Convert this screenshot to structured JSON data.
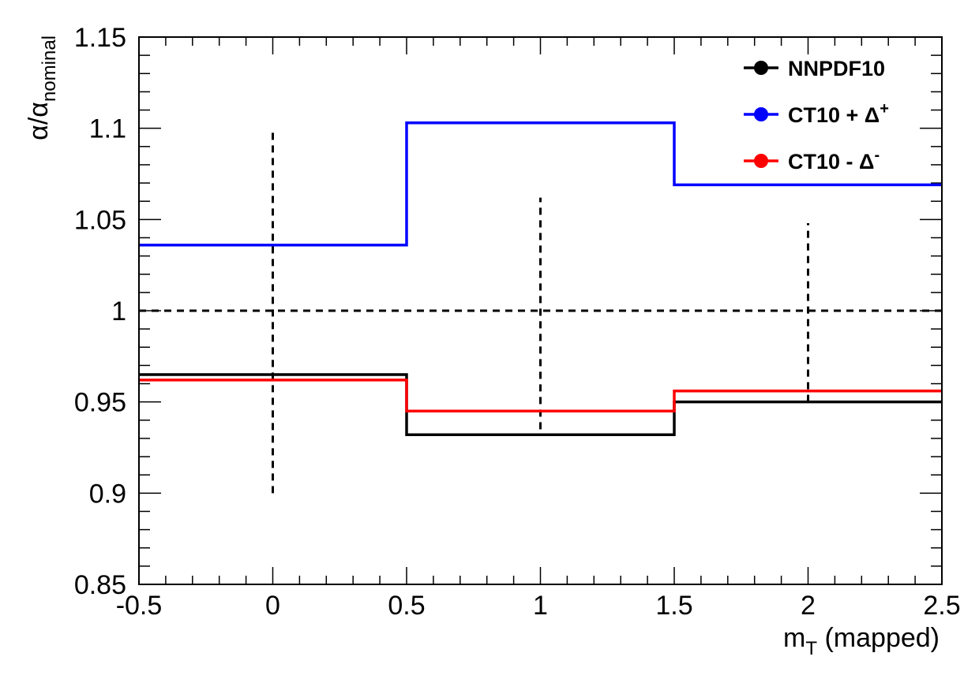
{
  "chart_data": {
    "type": "line",
    "step": true,
    "xlabel": "m_T (mapped)",
    "xlabel_parts": {
      "main": "m",
      "sub": "T",
      "rest": " (mapped)"
    },
    "ylabel": "α/α_nominal",
    "ylabel_parts": {
      "main": "α/α",
      "sub": "nominal"
    },
    "xlim": [
      -0.5,
      2.5
    ],
    "ylim": [
      0.85,
      1.15
    ],
    "x_ticks": [
      "-0.5",
      "0",
      "0.5",
      "1",
      "1.5",
      "2",
      "2.5"
    ],
    "x_tick_values": [
      -0.5,
      0,
      0.5,
      1,
      1.5,
      2,
      2.5
    ],
    "y_ticks": [
      "0.85",
      "0.9",
      "0.95",
      "1",
      "1.05",
      "1.1",
      "1.15"
    ],
    "y_tick_values": [
      0.85,
      0.9,
      0.95,
      1.0,
      1.05,
      1.1,
      1.15
    ],
    "bin_edges": [
      -0.5,
      0.5,
      1.5,
      2.5
    ],
    "reference_line": {
      "y": 1.0,
      "style": "dashed",
      "color": "#000000"
    },
    "error_bars": [
      {
        "x": 0,
        "low": 0.9,
        "high": 1.098
      },
      {
        "x": 1,
        "low": 0.935,
        "high": 1.062
      },
      {
        "x": 2,
        "low": 0.95,
        "high": 1.048
      }
    ],
    "series": [
      {
        "name": "NNPDF10",
        "label_main": "NNPDF10",
        "label_sup": "",
        "color": "#000000",
        "values": [
          0.965,
          0.932,
          0.95
        ]
      },
      {
        "name": "CT10 + Δ+",
        "label_main": "CT10 + Δ",
        "label_sup": "+",
        "color": "#0000ff",
        "values": [
          1.036,
          1.103,
          1.069
        ]
      },
      {
        "name": "CT10 - Δ-",
        "label_main": "CT10 - Δ",
        "label_sup": "-",
        "color": "#ff0000",
        "values": [
          0.962,
          0.945,
          0.956
        ]
      }
    ],
    "legend_position": "top-right",
    "grid": false
  }
}
